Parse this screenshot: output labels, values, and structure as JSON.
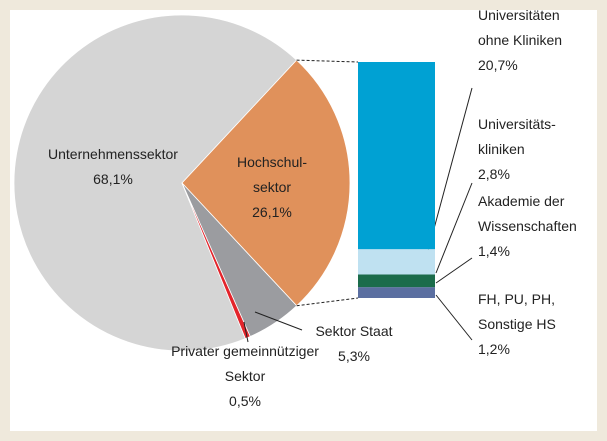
{
  "chart_data": {
    "type": "pie-of-bar",
    "pie": {
      "labels": [
        [
          "Unternehmenssektor"
        ],
        [
          "Hochschul-",
          "sektor"
        ],
        [
          "Sektor Staat"
        ],
        [
          "Privater gemeinnütziger",
          "Sektor"
        ]
      ],
      "values": [
        68.1,
        26.1,
        5.3,
        0.5
      ],
      "value_labels": [
        "68,1%",
        "26,1%",
        "5,3%",
        "0,5%"
      ],
      "colors": [
        "#d5d5d5",
        "#e0915b",
        "#9b9ca0",
        "#e3242b"
      ]
    },
    "bar": {
      "labels": [
        [
          "Universitäten",
          "ohne Kliniken"
        ],
        [
          "Universitäts-",
          "kliniken"
        ],
        [
          "Akademie der",
          "Wissenschaften"
        ],
        [
          "FH, PU, PH,",
          "Sonstige HS"
        ]
      ],
      "values": [
        20.7,
        2.8,
        1.4,
        1.2
      ],
      "value_labels": [
        "20,7%",
        "2,8%",
        "1,4%",
        "1,2%"
      ],
      "colors": [
        "#00a1d3",
        "#bfe1f1",
        "#1b6c4b",
        "#5b6fa1"
      ]
    }
  }
}
